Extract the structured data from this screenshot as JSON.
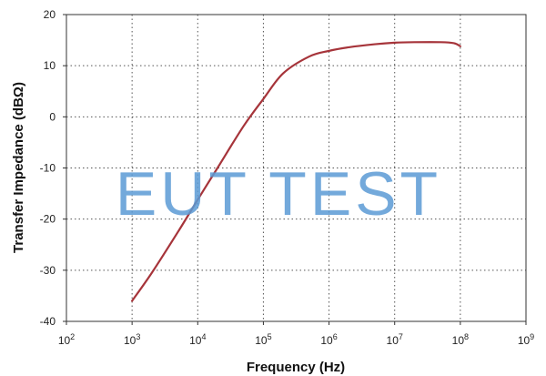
{
  "chart_data": {
    "type": "line",
    "xlabel": "Frequency (Hz)",
    "ylabel": "Transfer Impedance (dBΩ)",
    "xscale": "log",
    "xlim": [
      100,
      1000000000
    ],
    "ylim": [
      -40,
      20
    ],
    "x_ticks": [
      {
        "value": 100,
        "base": "10",
        "exp": "2"
      },
      {
        "value": 1000,
        "base": "10",
        "exp": "3"
      },
      {
        "value": 10000,
        "base": "10",
        "exp": "4"
      },
      {
        "value": 100000,
        "base": "10",
        "exp": "5"
      },
      {
        "value": 1000000,
        "base": "10",
        "exp": "6"
      },
      {
        "value": 10000000,
        "base": "10",
        "exp": "7"
      },
      {
        "value": 100000000,
        "base": "10",
        "exp": "8"
      },
      {
        "value": 1000000000,
        "base": "10",
        "exp": "9"
      }
    ],
    "y_ticks": [
      20,
      10,
      0,
      -10,
      -20,
      -30,
      -40
    ],
    "grid": "dotted",
    "series": [
      {
        "color": "#a6343a",
        "x": [
          1000,
          2000,
          5000,
          10000,
          20000,
          50000,
          100000,
          200000,
          500000,
          1000000,
          2000000,
          5000000,
          10000000,
          20000000,
          50000000,
          80000000,
          100000000
        ],
        "y": [
          -36,
          -30.5,
          -22.5,
          -16.2,
          -10,
          -1.8,
          3.5,
          8.5,
          11.8,
          12.9,
          13.6,
          14.2,
          14.5,
          14.6,
          14.6,
          14.4,
          13.8
        ]
      }
    ]
  },
  "watermark": {
    "text": "EUT TEST",
    "color": "#5b9bd5"
  }
}
